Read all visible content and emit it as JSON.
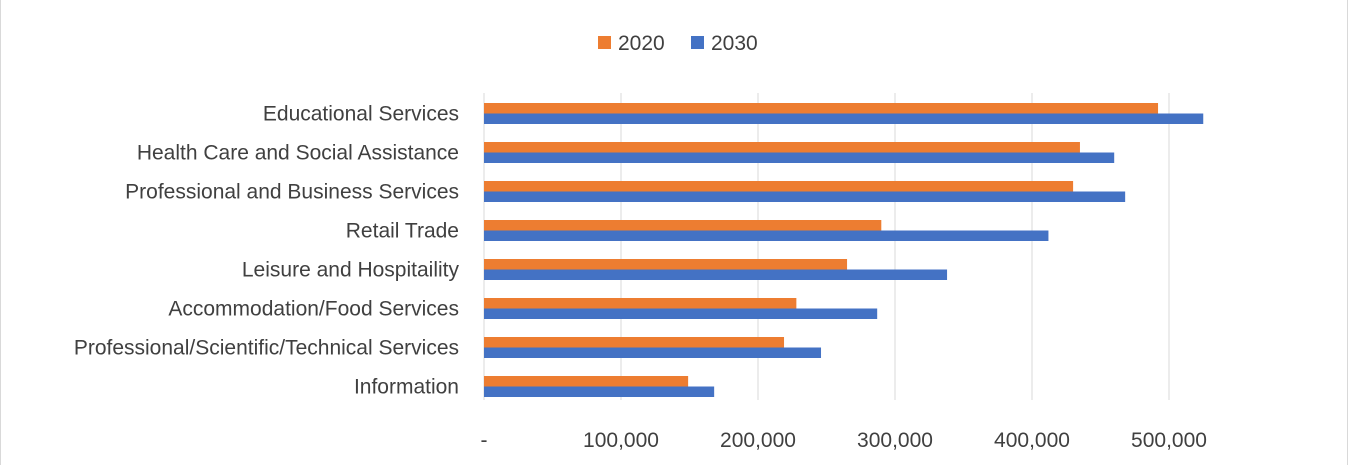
{
  "chart_data": {
    "type": "bar",
    "orientation": "horizontal",
    "categories": [
      "Educational Services",
      "Health Care and Social Assistance",
      "Professional and Business Services",
      "Retail Trade",
      "Leisure and Hospitaility",
      "Accommodation/Food Services",
      "Professional/Scientific/Technical Services",
      "Information"
    ],
    "series": [
      {
        "name": "2020",
        "color": "#ED7D31",
        "values": [
          492000,
          435000,
          430000,
          290000,
          265000,
          228000,
          219000,
          149000
        ]
      },
      {
        "name": "2030",
        "color": "#4472C4",
        "values": [
          525000,
          460000,
          468000,
          412000,
          338000,
          287000,
          246000,
          168000
        ]
      }
    ],
    "xlim": [
      0,
      500000
    ],
    "xticks": [
      0,
      100000,
      200000,
      300000,
      400000,
      500000
    ],
    "xtick_labels": [
      "-",
      "100,000",
      "200,000",
      "300,000",
      "400,000",
      "500,000"
    ],
    "grid": "vertical",
    "legend_position": "top-center",
    "title": "",
    "xlabel": "",
    "ylabel": ""
  }
}
